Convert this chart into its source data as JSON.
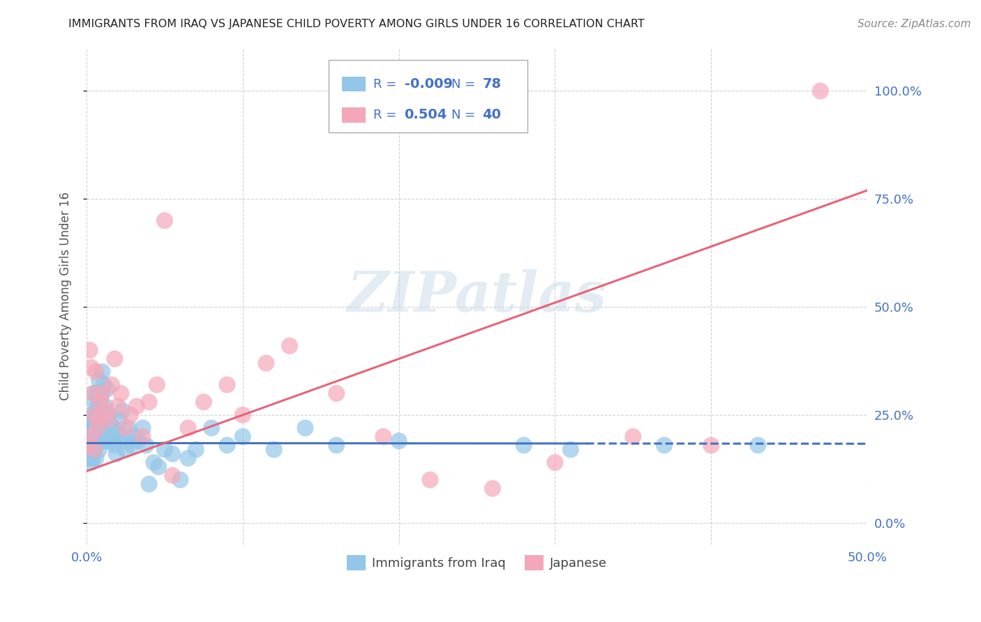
{
  "title": "IMMIGRANTS FROM IRAQ VS JAPANESE CHILD POVERTY AMONG GIRLS UNDER 16 CORRELATION CHART",
  "source": "Source: ZipAtlas.com",
  "ylabel": "Child Poverty Among Girls Under 16",
  "legend_label1": "Immigrants from Iraq",
  "legend_label2": "Japanese",
  "R1": "-0.009",
  "N1": "78",
  "R2": "0.504",
  "N2": "40",
  "xlim": [
    0.0,
    0.5
  ],
  "ylim": [
    -0.05,
    1.1
  ],
  "yticks": [
    0.0,
    0.25,
    0.5,
    0.75,
    1.0
  ],
  "ytick_labels_right": [
    "0.0%",
    "25.0%",
    "50.0%",
    "75.0%",
    "100.0%"
  ],
  "xticks": [
    0.0,
    0.1,
    0.2,
    0.3,
    0.4,
    0.5
  ],
  "xtick_labels": [
    "0.0%",
    "",
    "",
    "",
    "",
    "50.0%"
  ],
  "color_iraq": "#93C6E8",
  "color_japan": "#F4A7B9",
  "color_iraq_line": "#4472C4",
  "color_japan_line": "#E8637A",
  "color_labels": "#4472C4",
  "watermark_text": "ZIPatlas",
  "iraq_x": [
    0.001,
    0.001,
    0.001,
    0.002,
    0.002,
    0.002,
    0.002,
    0.003,
    0.003,
    0.003,
    0.003,
    0.003,
    0.004,
    0.004,
    0.004,
    0.004,
    0.004,
    0.005,
    0.005,
    0.005,
    0.005,
    0.005,
    0.006,
    0.006,
    0.006,
    0.006,
    0.007,
    0.007,
    0.007,
    0.007,
    0.008,
    0.008,
    0.008,
    0.009,
    0.009,
    0.01,
    0.01,
    0.011,
    0.012,
    0.012,
    0.013,
    0.014,
    0.015,
    0.016,
    0.017,
    0.018,
    0.019,
    0.02,
    0.021,
    0.022,
    0.023,
    0.024,
    0.025,
    0.027,
    0.029,
    0.031,
    0.033,
    0.036,
    0.038,
    0.04,
    0.043,
    0.046,
    0.05,
    0.055,
    0.06,
    0.065,
    0.07,
    0.08,
    0.09,
    0.1,
    0.12,
    0.14,
    0.16,
    0.2,
    0.28,
    0.31,
    0.37,
    0.43
  ],
  "iraq_y": [
    0.18,
    0.16,
    0.2,
    0.22,
    0.17,
    0.19,
    0.15,
    0.25,
    0.18,
    0.21,
    0.16,
    0.14,
    0.2,
    0.17,
    0.23,
    0.19,
    0.15,
    0.28,
    0.22,
    0.25,
    0.17,
    0.3,
    0.24,
    0.18,
    0.21,
    0.15,
    0.3,
    0.27,
    0.22,
    0.19,
    0.33,
    0.17,
    0.26,
    0.29,
    0.2,
    0.35,
    0.22,
    0.32,
    0.27,
    0.19,
    0.31,
    0.25,
    0.23,
    0.19,
    0.22,
    0.18,
    0.16,
    0.21,
    0.24,
    0.2,
    0.26,
    0.19,
    0.17,
    0.22,
    0.18,
    0.2,
    0.19,
    0.22,
    0.18,
    0.09,
    0.14,
    0.13,
    0.17,
    0.16,
    0.1,
    0.15,
    0.17,
    0.22,
    0.18,
    0.2,
    0.17,
    0.22,
    0.18,
    0.19,
    0.18,
    0.17,
    0.18,
    0.18
  ],
  "japan_x": [
    0.001,
    0.002,
    0.003,
    0.003,
    0.004,
    0.005,
    0.005,
    0.006,
    0.007,
    0.008,
    0.009,
    0.01,
    0.012,
    0.014,
    0.016,
    0.018,
    0.02,
    0.022,
    0.025,
    0.028,
    0.032,
    0.036,
    0.04,
    0.045,
    0.05,
    0.055,
    0.065,
    0.075,
    0.09,
    0.1,
    0.115,
    0.13,
    0.16,
    0.19,
    0.22,
    0.26,
    0.3,
    0.35,
    0.4,
    0.47
  ],
  "japan_y": [
    0.18,
    0.4,
    0.2,
    0.36,
    0.3,
    0.25,
    0.17,
    0.35,
    0.22,
    0.24,
    0.28,
    0.3,
    0.26,
    0.24,
    0.32,
    0.38,
    0.27,
    0.3,
    0.22,
    0.25,
    0.27,
    0.2,
    0.28,
    0.32,
    0.7,
    0.11,
    0.22,
    0.28,
    0.32,
    0.25,
    0.37,
    0.41,
    0.3,
    0.2,
    0.1,
    0.08,
    0.14,
    0.2,
    0.18,
    1.0
  ],
  "iraq_line_solid_end": 0.32,
  "iraq_line_y_intercept": 0.185,
  "iraq_line_slope": -0.003,
  "japan_line_y_intercept": 0.12,
  "japan_line_slope": 1.3
}
